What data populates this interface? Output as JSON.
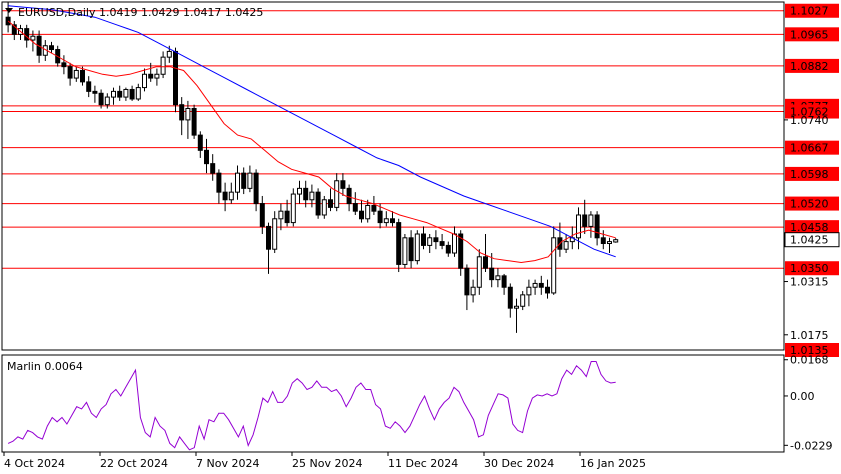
{
  "header": {
    "symbol_line": "EURUSD,Daily  1.0419 1.0429 1.0417 1.0425",
    "indicator_line": "Marlin 0.0064"
  },
  "colors": {
    "background": "#ffffff",
    "frame": "#000000",
    "level_lines": "#ff0000",
    "ma_fast": "#ff0000",
    "ma_slow": "#0000ff",
    "oscillator": "#9400d3",
    "price_tag_bg": "#ff0000",
    "price_tag_fg": "#ffffff"
  },
  "chart_data": [
    {
      "type": "candlestick",
      "title": "EURUSD,Daily",
      "last_bar": {
        "open": 1.0419,
        "high": 1.0429,
        "low": 1.0417,
        "close": 1.0425
      },
      "x_tick_labels": [
        "4 Oct 2024",
        "22 Oct 2024",
        "7 Nov 2024",
        "25 Nov 2024",
        "11 Dec 2024",
        "30 Dec 2024",
        "16 Jan 2025"
      ],
      "y_tick_labels": [
        "1.0740",
        "1.0315",
        "1.0175"
      ],
      "ylim": [
        1.0135,
        1.105
      ],
      "levels": [
        "1.1027",
        "1.0965",
        "1.0882",
        "1.0777",
        "1.0762",
        "1.0667",
        "1.0598",
        "1.0520",
        "1.0458",
        "1.0350",
        "1.0135"
      ],
      "current_price": "1.0425",
      "candles": [
        [
          1.101,
          1.105,
          1.097,
          1.099
        ],
        [
          1.099,
          1.1,
          1.095,
          1.0965
        ],
        [
          1.0965,
          1.099,
          1.095,
          1.098
        ],
        [
          1.098,
          1.099,
          1.093,
          1.095
        ],
        [
          1.095,
          1.0975,
          1.092,
          1.096
        ],
        [
          1.096,
          1.0975,
          1.089,
          1.091
        ],
        [
          1.091,
          1.095,
          1.0895,
          1.0935
        ],
        [
          1.0935,
          1.0945,
          1.0915,
          1.0925
        ],
        [
          1.0925,
          1.0935,
          1.088,
          1.089
        ],
        [
          1.089,
          1.091,
          1.086,
          1.088
        ],
        [
          1.088,
          1.089,
          1.083,
          1.085
        ],
        [
          1.085,
          1.088,
          1.084,
          1.087
        ],
        [
          1.087,
          1.088,
          1.083,
          1.084
        ],
        [
          1.084,
          1.0855,
          1.08,
          1.0815
        ],
        [
          1.0815,
          1.083,
          1.0785,
          1.081
        ],
        [
          1.081,
          1.082,
          1.077,
          1.078
        ],
        [
          1.078,
          1.081,
          1.077,
          1.08
        ],
        [
          1.08,
          1.0825,
          1.078,
          1.0815
        ],
        [
          1.0815,
          1.083,
          1.079,
          1.08
        ],
        [
          1.08,
          1.0825,
          1.079,
          1.082
        ],
        [
          1.082,
          1.083,
          1.079,
          1.0795
        ],
        [
          1.0795,
          1.0835,
          1.079,
          1.0825
        ],
        [
          1.0825,
          1.0875,
          1.0815,
          1.086
        ],
        [
          1.086,
          1.089,
          1.084,
          1.085
        ],
        [
          1.085,
          1.0875,
          1.083,
          1.086
        ],
        [
          1.086,
          1.092,
          1.085,
          1.0905
        ],
        [
          1.0905,
          1.0935,
          1.089,
          1.092
        ],
        [
          1.092,
          1.093,
          1.076,
          1.078
        ],
        [
          1.078,
          1.08,
          1.07,
          1.074
        ],
        [
          1.074,
          1.079,
          1.069,
          1.077
        ],
        [
          1.077,
          1.078,
          1.069,
          1.07
        ],
        [
          1.07,
          1.071,
          1.064,
          1.066
        ],
        [
          1.066,
          1.069,
          1.06,
          1.0625
        ],
        [
          1.0625,
          1.065,
          1.058,
          1.06
        ],
        [
          1.06,
          1.061,
          1.052,
          1.055
        ],
        [
          1.055,
          1.0575,
          1.05,
          1.053
        ],
        [
          1.053,
          1.0575,
          1.052,
          1.055
        ],
        [
          1.055,
          1.062,
          1.053,
          1.06
        ],
        [
          1.06,
          1.0615,
          1.0545,
          1.056
        ],
        [
          1.056,
          1.062,
          1.055,
          1.06
        ],
        [
          1.06,
          1.061,
          1.05,
          1.052
        ],
        [
          1.052,
          1.054,
          1.044,
          1.046
        ],
        [
          1.046,
          1.047,
          1.0335,
          1.04
        ],
        [
          1.04,
          1.05,
          1.039,
          1.048
        ],
        [
          1.048,
          1.052,
          1.045,
          1.05
        ],
        [
          1.05,
          1.053,
          1.046,
          1.047
        ],
        [
          1.047,
          1.056,
          1.046,
          1.0545
        ],
        [
          1.0545,
          1.058,
          1.052,
          1.056
        ],
        [
          1.056,
          1.058,
          1.051,
          1.053
        ],
        [
          1.053,
          1.057,
          1.051,
          1.055
        ],
        [
          1.055,
          1.056,
          1.048,
          1.049
        ],
        [
          1.049,
          1.054,
          1.048,
          1.053
        ],
        [
          1.053,
          1.056,
          1.05,
          1.051
        ],
        [
          1.051,
          1.06,
          1.05,
          1.058
        ],
        [
          1.058,
          1.06,
          1.054,
          1.056
        ],
        [
          1.056,
          1.057,
          1.05,
          1.052
        ],
        [
          1.052,
          1.055,
          1.049,
          1.05
        ],
        [
          1.05,
          1.053,
          1.047,
          1.048
        ],
        [
          1.048,
          1.053,
          1.047,
          1.0515
        ],
        [
          1.0515,
          1.054,
          1.049,
          1.05
        ],
        [
          1.05,
          1.052,
          1.0455,
          1.047
        ],
        [
          1.047,
          1.05,
          1.046,
          1.048
        ],
        [
          1.048,
          1.05,
          1.046,
          1.047
        ],
        [
          1.047,
          1.048,
          1.034,
          1.036
        ],
        [
          1.036,
          1.044,
          1.035,
          1.043
        ],
        [
          1.043,
          1.045,
          1.035,
          1.037
        ],
        [
          1.037,
          1.045,
          1.036,
          1.044
        ],
        [
          1.044,
          1.046,
          1.04,
          1.041
        ],
        [
          1.041,
          1.044,
          1.039,
          1.043
        ],
        [
          1.043,
          1.045,
          1.04,
          1.042
        ],
        [
          1.042,
          1.044,
          1.04,
          1.041
        ],
        [
          1.041,
          1.042,
          1.038,
          1.039
        ],
        [
          1.039,
          1.046,
          1.038,
          1.044
        ],
        [
          1.044,
          1.045,
          1.033,
          1.035
        ],
        [
          1.035,
          1.036,
          1.024,
          1.028
        ],
        [
          1.028,
          1.032,
          1.026,
          1.03
        ],
        [
          1.03,
          1.04,
          1.028,
          1.038
        ],
        [
          1.038,
          1.044,
          1.034,
          1.035
        ],
        [
          1.035,
          1.039,
          1.03,
          1.032
        ],
        [
          1.032,
          1.035,
          1.03,
          1.033
        ],
        [
          1.033,
          1.0335,
          1.028,
          1.03
        ],
        [
          1.03,
          1.031,
          1.022,
          1.0245
        ],
        [
          1.0245,
          1.027,
          1.018,
          1.025
        ],
        [
          1.025,
          1.029,
          1.024,
          1.028
        ],
        [
          1.028,
          1.032,
          1.025,
          1.03
        ],
        [
          1.03,
          1.032,
          1.028,
          1.031
        ],
        [
          1.031,
          1.033,
          1.028,
          1.03
        ],
        [
          1.03,
          1.032,
          1.027,
          1.0285
        ],
        [
          1.0285,
          1.046,
          1.028,
          1.043
        ],
        [
          1.043,
          1.047,
          1.038,
          1.04
        ],
        [
          1.04,
          1.044,
          1.039,
          1.042
        ],
        [
          1.042,
          1.046,
          1.04,
          1.043
        ],
        [
          1.043,
          1.051,
          1.04,
          1.049
        ],
        [
          1.049,
          1.053,
          1.044,
          1.046
        ],
        [
          1.046,
          1.05,
          1.043,
          1.049
        ],
        [
          1.049,
          1.05,
          1.041,
          1.043
        ],
        [
          1.043,
          1.045,
          1.04,
          1.0415
        ],
        [
          1.0415,
          1.043,
          1.039,
          1.042
        ],
        [
          1.0419,
          1.0429,
          1.0417,
          1.0425
        ]
      ],
      "ma_fast": [
        1.1,
        1.097,
        1.094,
        1.092,
        1.09,
        1.088,
        1.087,
        1.086,
        1.0855,
        1.086,
        1.087,
        1.088,
        1.088,
        1.087,
        1.083,
        1.078,
        1.073,
        1.07,
        1.069,
        1.066,
        1.063,
        1.061,
        1.06,
        1.059,
        1.056,
        1.054,
        1.053,
        1.052,
        1.0505,
        1.049,
        1.048,
        1.047,
        1.0455,
        1.044,
        1.042,
        1.039,
        1.0375,
        1.037,
        1.0365,
        1.037,
        1.038,
        1.042,
        1.044,
        1.045,
        1.044,
        1.043
      ],
      "ma_slow": [
        1.104,
        1.1035,
        1.103,
        1.102,
        1.101,
        1.099,
        1.097,
        1.094,
        1.091,
        1.088,
        1.085,
        1.082,
        1.079,
        1.076,
        1.073,
        1.07,
        1.067,
        1.064,
        1.062,
        1.059,
        1.0565,
        1.054,
        1.052,
        1.05,
        1.048,
        1.046,
        1.043,
        1.04,
        1.038
      ],
      "oscillator": {
        "name": "Marlin",
        "value": "0.0064",
        "y_tick_labels": [
          "0.0168",
          "0.00",
          "-0.0229"
        ],
        "ylim": [
          -0.026,
          0.019
        ],
        "values": [
          -0.022,
          -0.021,
          -0.019,
          -0.02,
          -0.016,
          -0.017,
          -0.019,
          -0.02,
          -0.014,
          -0.01,
          -0.012,
          -0.01,
          -0.013,
          -0.009,
          -0.005,
          -0.006,
          -0.003,
          -0.008,
          -0.01,
          -0.006,
          -0.004,
          0.001,
          0.003,
          0.0,
          0.004,
          0.008,
          0.012,
          -0.01,
          -0.017,
          -0.019,
          -0.01,
          -0.014,
          -0.016,
          -0.022,
          -0.024,
          -0.019,
          -0.022,
          -0.025,
          -0.024,
          -0.014,
          -0.02,
          -0.011,
          -0.012,
          -0.008,
          -0.008,
          -0.011,
          -0.015,
          -0.019,
          -0.014,
          -0.023,
          -0.018,
          -0.01,
          -0.001,
          -0.003,
          0.002,
          -0.003,
          -0.003,
          0.0,
          0.006,
          0.008,
          0.006,
          0.003,
          0.004,
          0.007,
          0.004,
          0.004,
          0.002,
          0.003,
          0.0,
          -0.005,
          -0.001,
          0.004,
          0.006,
          0.003,
          0.003,
          -0.004,
          -0.006,
          -0.014,
          -0.015,
          -0.012,
          -0.014,
          -0.017,
          -0.014,
          -0.009,
          -0.004,
          0.0,
          -0.006,
          -0.011,
          -0.006,
          -0.003,
          -0.001,
          0.004,
          0.002,
          -0.003,
          -0.007,
          -0.011,
          -0.019,
          -0.018,
          -0.009,
          -0.004,
          0.001,
          0.0005,
          -0.001,
          -0.013,
          -0.016,
          -0.017,
          -0.007,
          -0.001,
          0.0005,
          0.0,
          0.001,
          0.0,
          0.001,
          0.008,
          0.012,
          0.01,
          0.014,
          0.012,
          0.009,
          0.016,
          0.016,
          0.01,
          0.007,
          0.006,
          0.0064
        ]
      }
    }
  ]
}
